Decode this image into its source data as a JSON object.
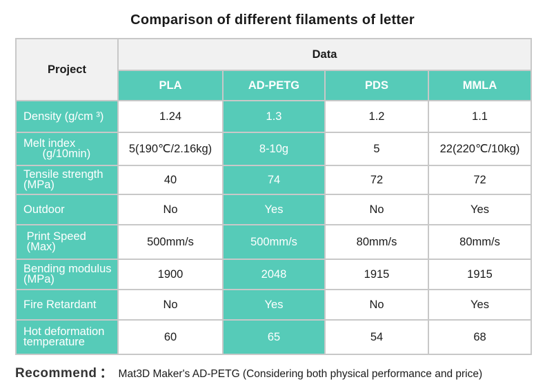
{
  "title": "Comparison of different filaments of letter",
  "table": {
    "project_header": "Project",
    "data_header": "Data",
    "materials": [
      "PLA",
      "AD-PETG",
      "PDS",
      "MMLA"
    ],
    "rows": [
      {
        "label_lines": [
          "Density (g/cm ³)"
        ],
        "values": [
          "1.24",
          "1.3",
          "1.2",
          "1.1"
        ]
      },
      {
        "label_lines": [
          "Melt index",
          "      (g/10min)"
        ],
        "values": [
          "5(190℃/2.16kg)",
          "8-10g",
          "5",
          "22(220℃/10kg)"
        ]
      },
      {
        "label_lines": [
          "Tensile strength",
          "(MPa)"
        ],
        "values": [
          "40",
          "74",
          "72",
          "72"
        ]
      },
      {
        "label_lines": [
          "Outdoor"
        ],
        "values": [
          "No",
          "Yes",
          "No",
          "Yes"
        ]
      },
      {
        "label_lines": [
          " Print Speed",
          " (Max)"
        ],
        "values": [
          "500mm/s",
          "500mm/s",
          "80mm/s",
          "80mm/s"
        ]
      },
      {
        "label_lines": [
          "Bending modulus",
          "(MPa)"
        ],
        "values": [
          "1900",
          "2048",
          "1915",
          "1915"
        ]
      },
      {
        "label_lines": [
          "Fire Retardant"
        ],
        "values": [
          "No",
          "Yes",
          "No",
          "Yes"
        ]
      },
      {
        "label_lines": [
          "Hot deformation",
          "temperature"
        ],
        "values": [
          "60",
          "65",
          "54",
          "68"
        ]
      }
    ]
  },
  "recommend": {
    "label": "Recommend",
    "colon": "：",
    "text": "Mat3D Maker's AD-PETG (Considering both physical performance and price)"
  },
  "colors": {
    "accent_teal": "#56cbb8",
    "header_gray": "#f1f1f1",
    "border": "#c8c8c8"
  }
}
